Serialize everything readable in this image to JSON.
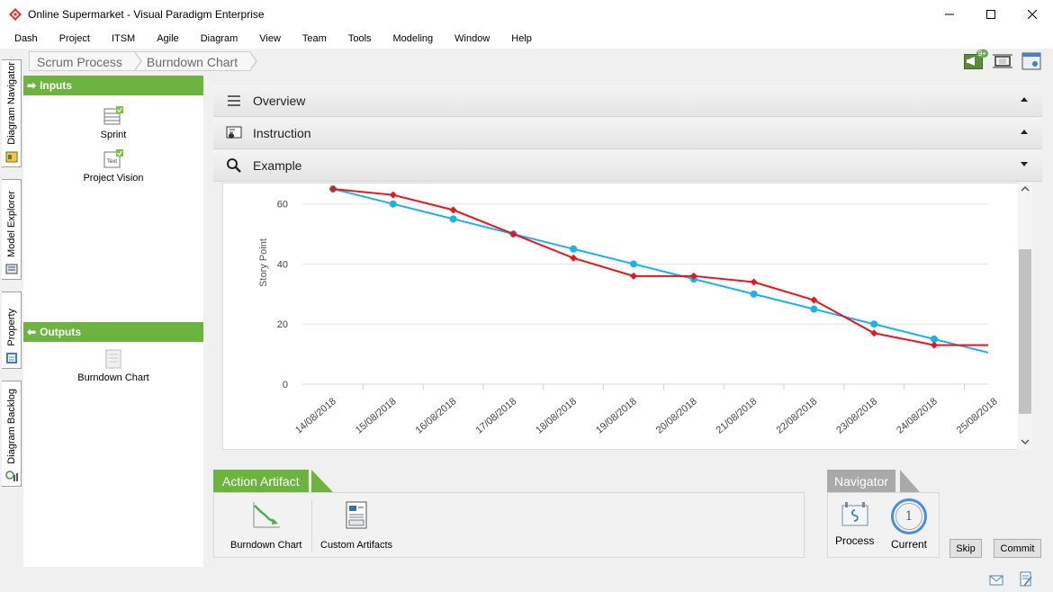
{
  "window": {
    "title": "Online Supermarket - Visual Paradigm Enterprise",
    "controls": [
      "minimize",
      "maximize",
      "close"
    ]
  },
  "menu": [
    "Dash",
    "Project",
    "ITSM",
    "Agile",
    "Diagram",
    "View",
    "Team",
    "Tools",
    "Modeling",
    "Window",
    "Help"
  ],
  "left_rail": {
    "tabs": [
      "Diagram Navigator",
      "Model Explorer",
      "Property",
      "Diagram Backlog"
    ]
  },
  "breadcrumb": [
    "Scrum Process",
    "Burndown Chart"
  ],
  "toolbar": {
    "notification_badge": "9+"
  },
  "inputs": {
    "header": "Inputs",
    "items": [
      {
        "label": "Sprint",
        "icon": "table-icon"
      },
      {
        "label": "Project Vision",
        "icon": "text-doc-icon",
        "icon_text": "Text"
      }
    ]
  },
  "outputs": {
    "header": "Outputs",
    "items": [
      {
        "label": "Burndown Chart",
        "icon": "document-icon"
      }
    ]
  },
  "sections": [
    {
      "label": "Overview",
      "icon": "list-icon",
      "state": "collapsed"
    },
    {
      "label": "Instruction",
      "icon": "instruction-icon",
      "state": "collapsed"
    },
    {
      "label": "Example",
      "icon": "search-icon",
      "state": "expanded"
    }
  ],
  "chart_data": {
    "type": "line",
    "ylabel": "Story Point",
    "xlabel": "",
    "ylim": [
      0,
      65
    ],
    "yticks": [
      0,
      20,
      40,
      60
    ],
    "categories": [
      "14/08/2018",
      "15/08/2018",
      "16/08/2018",
      "17/08/2018",
      "18/08/2018",
      "19/08/2018",
      "20/08/2018",
      "21/08/2018",
      "22/08/2018",
      "23/08/2018",
      "24/08/2018",
      "25/08/2018"
    ],
    "grid": true,
    "series": [
      {
        "color": "#1ab2e8",
        "marker": "circle",
        "values": [
          65,
          60,
          55,
          50,
          45,
          40,
          35,
          30,
          25,
          20,
          15,
          10.5
        ]
      },
      {
        "color": "#e8141e",
        "marker": "diamond",
        "values": [
          65,
          63,
          58,
          50,
          42,
          36,
          36,
          34,
          28,
          17,
          13,
          13
        ]
      }
    ]
  },
  "action_artifact": {
    "header": "Action Artifact",
    "items": [
      {
        "label": "Burndown Chart",
        "icon": "burndown-icon"
      },
      {
        "label": "Custom Artifacts",
        "icon": "custom-artifacts-icon"
      }
    ]
  },
  "navigator": {
    "header": "Navigator",
    "items": [
      {
        "label": "Process",
        "icon": "process-icon"
      },
      {
        "label": "Current",
        "icon": "current-step-icon",
        "value": "1"
      }
    ]
  },
  "buttons": {
    "skip": "Skip",
    "commit": "Commit"
  },
  "colors": {
    "accent_green": "#6db33f",
    "navigator_gray": "#a9a9a9",
    "ideal_line": "#1ab2e8",
    "actual_line": "#e8141e"
  }
}
